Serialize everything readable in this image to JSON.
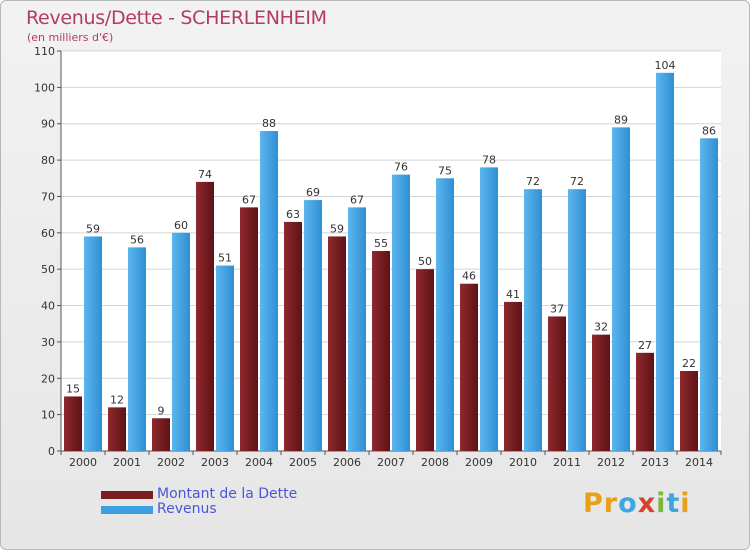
{
  "header": {
    "title": "Revenus/Dette - SCHERLENHEIM",
    "subtitle": "(en milliers d'€)"
  },
  "logo": {
    "text": "Proxiti",
    "letters": [
      {
        "ch": "P",
        "color": "#e8a019"
      },
      {
        "ch": "r",
        "color": "#e8a019"
      },
      {
        "ch": "o",
        "color": "#3fa6e0"
      },
      {
        "ch": "x",
        "color": "#d9412b"
      },
      {
        "ch": "i",
        "color": "#7ab83a"
      },
      {
        "ch": "t",
        "color": "#3fa6e0"
      },
      {
        "ch": "i",
        "color": "#e8a019"
      }
    ]
  },
  "chart_data": {
    "type": "bar",
    "categories": [
      "2000",
      "2001",
      "2002",
      "2003",
      "2004",
      "2005",
      "2006",
      "2007",
      "2008",
      "2009",
      "2010",
      "2011",
      "2012",
      "2013",
      "2014"
    ],
    "series": [
      {
        "name": "Montant de la Dette",
        "color": "#7a1e22",
        "values": [
          15,
          12,
          9,
          74,
          67,
          63,
          59,
          55,
          50,
          46,
          41,
          37,
          32,
          27,
          22
        ]
      },
      {
        "name": "Revenus",
        "color": "#3d9ee0",
        "values": [
          59,
          56,
          60,
          51,
          88,
          69,
          67,
          76,
          75,
          78,
          72,
          72,
          89,
          104,
          86
        ]
      }
    ],
    "yticks": [
      0,
      10,
      20,
      30,
      40,
      50,
      60,
      70,
      80,
      90,
      100,
      110
    ],
    "ylim": [
      0,
      110
    ],
    "grid": true,
    "legend": "bottom-left"
  }
}
